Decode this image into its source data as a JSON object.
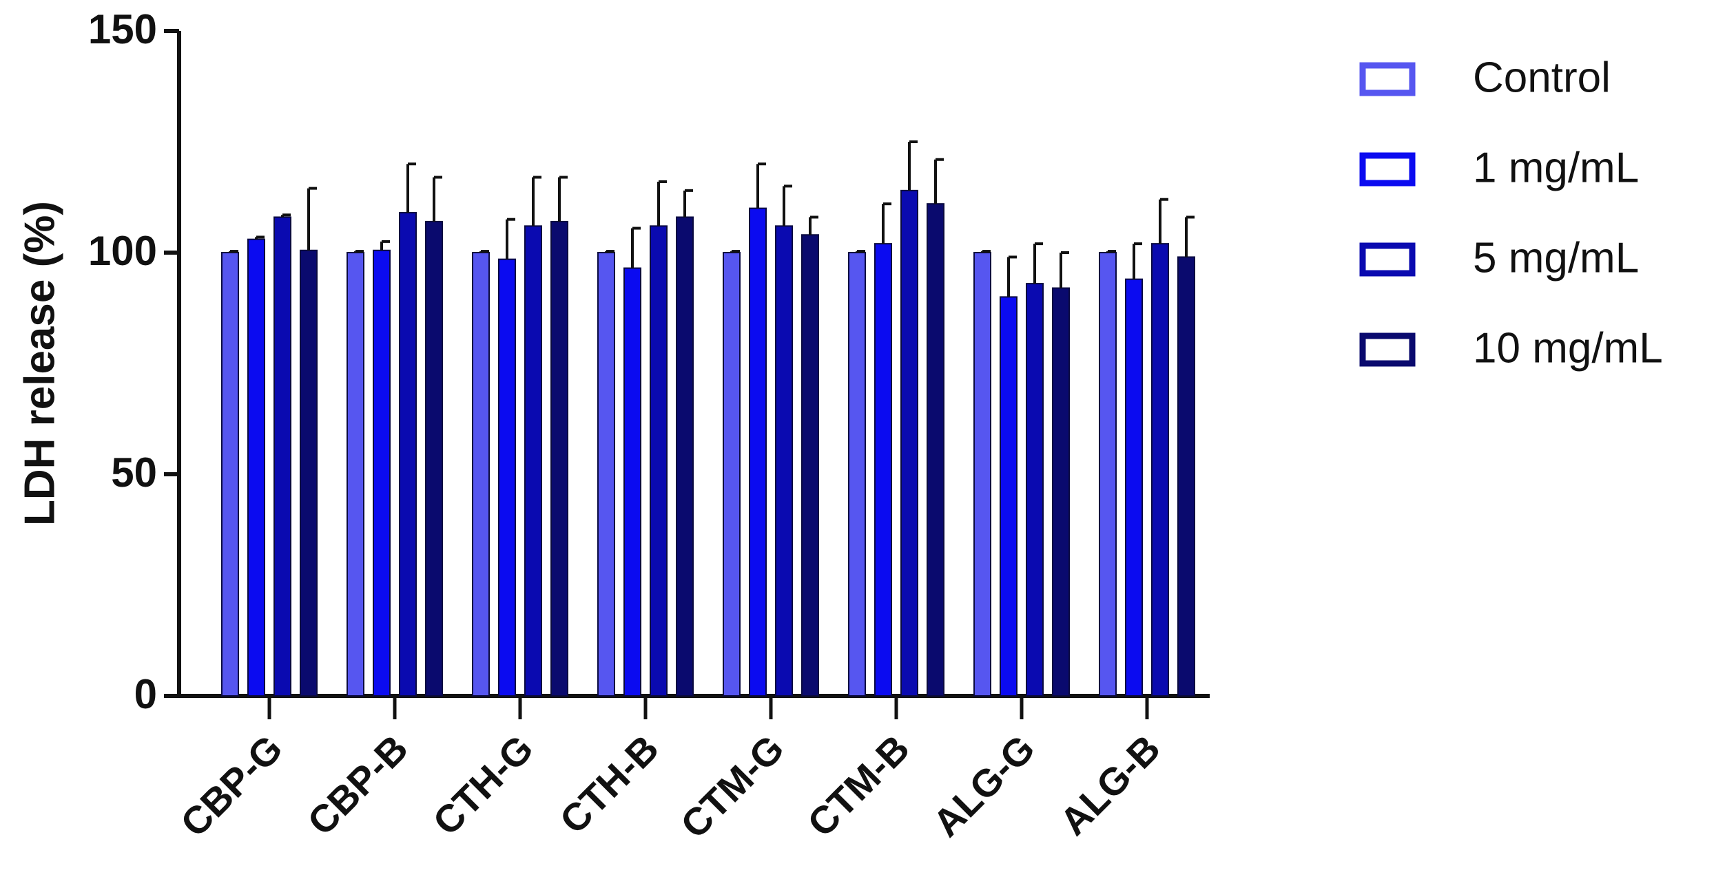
{
  "chart_data": {
    "type": "bar",
    "y_label": "LDH release (%)",
    "categories": [
      "CBP-G",
      "CBP-B",
      "CTH-G",
      "CTH-B",
      "CTM-G",
      "CTM-B",
      "ALG-G",
      "ALG-B"
    ],
    "series": [
      {
        "name": "Control",
        "color": "#5656f0",
        "values": [
          100,
          100,
          100,
          100,
          100,
          100,
          100,
          100
        ],
        "errors": [
          0.3,
          0.3,
          0.3,
          0.3,
          0.3,
          0.3,
          0.3,
          0.3
        ]
      },
      {
        "name": "1 mg/mL",
        "color": "#0b0bf0",
        "values": [
          103,
          100.5,
          98.5,
          96.5,
          110,
          102,
          90,
          94
        ],
        "errors": [
          0.5,
          2,
          9,
          9,
          10,
          9,
          9,
          8
        ]
      },
      {
        "name": "5 mg/mL",
        "color": "#0a0ab0",
        "values": [
          108,
          109,
          106,
          106,
          106,
          114,
          93,
          102
        ],
        "errors": [
          0.5,
          11,
          11,
          10,
          9,
          11,
          9,
          10
        ]
      },
      {
        "name": "10 mg/mL",
        "color": "#0a0a6e",
        "values": [
          100.5,
          107,
          107,
          108,
          104,
          111,
          92,
          99
        ],
        "errors": [
          14,
          10,
          10,
          6,
          4,
          10,
          8,
          9
        ]
      }
    ],
    "ylim": [
      0,
      150
    ],
    "yticks": [
      0,
      50,
      100,
      150
    ],
    "grid": false,
    "legend": "right"
  }
}
